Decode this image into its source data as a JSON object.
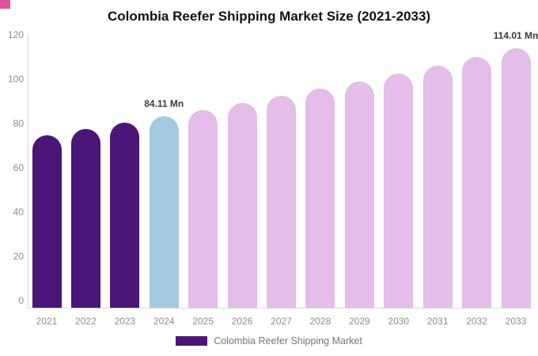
{
  "page": {
    "background": "#ffffff"
  },
  "corner_mark": {
    "color": "#e0549b"
  },
  "header": {
    "title": "Colombia Reefer Shipping Market Size (2021-2033)"
  },
  "chart_data": {
    "type": "bar",
    "title": "Colombia Reefer Shipping Market Size (2021-2033)",
    "categories": [
      "2021",
      "2022",
      "2023",
      "2024",
      "2025",
      "2026",
      "2027",
      "2028",
      "2029",
      "2030",
      "2031",
      "2032",
      "2033"
    ],
    "values": [
      76.0,
      78.61,
      81.31,
      84.11,
      87.0,
      89.99,
      93.08,
      96.28,
      99.59,
      103.02,
      106.56,
      110.22,
      114.01
    ],
    "unit": "Mn",
    "bar_colors": [
      "#4a1677",
      "#4a1677",
      "#4a1677",
      "#a3cade",
      "#e4bde8",
      "#e4bde8",
      "#e4bde8",
      "#e4bde8",
      "#e4bde8",
      "#e4bde8",
      "#e4bde8",
      "#e4bde8",
      "#e4bde8"
    ],
    "ylim": [
      0,
      120
    ],
    "yticks": [
      0,
      20,
      40,
      60,
      80,
      100,
      120
    ],
    "grid": false,
    "legend_position": "bottom",
    "annotations": [
      {
        "category": "2024",
        "text": "84.11 Mn"
      },
      {
        "category": "2033",
        "text": "114.01 Mn"
      }
    ]
  },
  "legend": {
    "label": "Colombia Reefer Shipping Market",
    "swatch_color": "#4a1677"
  },
  "colors": {
    "bar_dark_purple": "#4a1677",
    "bar_light_blue": "#a3cade",
    "bar_plum": "#e4bde8",
    "axis_line": "#d9d9d9",
    "tick_label": "#8c8c8c",
    "annotation_text": "#3b3b3b",
    "legend_text": "#757575",
    "title_text": "#111111"
  }
}
